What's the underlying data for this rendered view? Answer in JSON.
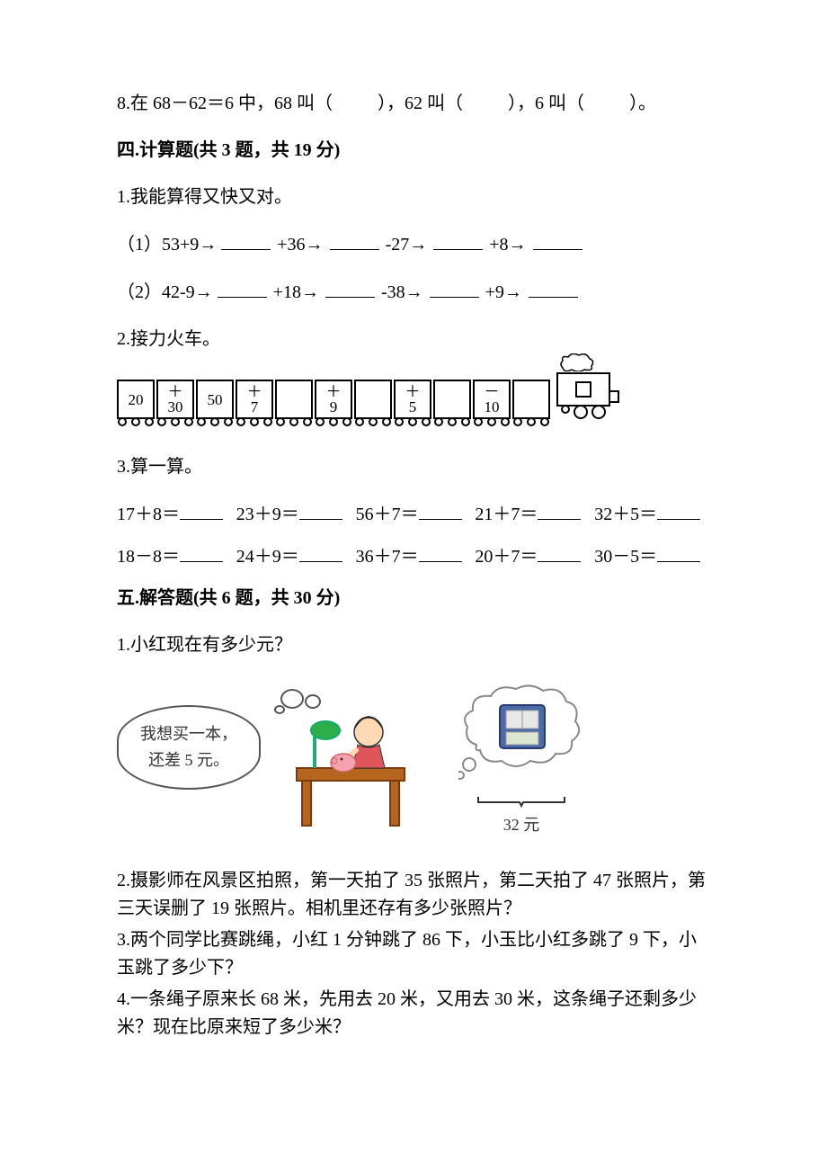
{
  "q8": {
    "text_a": "8.在 68－62＝6 中，68 叫（",
    "text_b": "），62 叫（",
    "text_c": "），6 叫（",
    "text_d": "）。"
  },
  "section4": {
    "heading": "四.计算题(共 3 题，共 19 分)",
    "q1": {
      "title": "1.我能算得又快又对。",
      "line1_start": "（1）53+9→",
      "line1_op1": "+36→",
      "line1_op2": "-27→",
      "line1_op3": "+8→",
      "line2_start": "（2）42-9→",
      "line2_op1": "+18→",
      "line2_op2": "-38→",
      "line2_op3": "+9→"
    },
    "q2": {
      "title": "2.接力火车。",
      "cars": [
        {
          "label": "20",
          "type": "value"
        },
        {
          "label": "＋\n30",
          "type": "op"
        },
        {
          "label": "50",
          "type": "value"
        },
        {
          "label": "＋\n7",
          "type": "op"
        },
        {
          "label": "",
          "type": "value"
        },
        {
          "label": "＋\n9",
          "type": "op"
        },
        {
          "label": "",
          "type": "value"
        },
        {
          "label": "＋\n5",
          "type": "op"
        },
        {
          "label": "",
          "type": "value"
        },
        {
          "label": "－\n10",
          "type": "op"
        },
        {
          "label": "",
          "type": "value"
        }
      ]
    },
    "q3": {
      "title": "3.算一算。",
      "row1": [
        {
          "expr": "17＋8＝"
        },
        {
          "expr": "23＋9＝"
        },
        {
          "expr": "56＋7＝"
        },
        {
          "expr": "21＋7＝"
        },
        {
          "expr": "32＋5＝"
        }
      ],
      "row2": [
        {
          "expr": "18－8＝"
        },
        {
          "expr": "24＋9＝"
        },
        {
          "expr": "36＋7＝"
        },
        {
          "expr": "20＋7＝"
        },
        {
          "expr": "30－5＝"
        }
      ]
    }
  },
  "section5": {
    "heading": "五.解答题(共 6 题，共 30 分)",
    "q1": {
      "title": "1.小红现在有多少元？",
      "bubble_line1": "我想买一本，",
      "bubble_line2": "还差 5 元。",
      "price": "32 元"
    },
    "q2": "2.摄影师在风景区拍照，第一天拍了 35 张照片，第二天拍了 47 张照片，第三天误删了 19 张照片。相机里还存有多少张照片？",
    "q3": "3.两个同学比赛跳绳，小红 1 分钟跳了 86 下，小玉比小红多跳了 9 下，小玉跳了多少下？",
    "q4": "4.一条绳子原来长 68 米，先用去 20 米，又用去 30 米，这条绳子还剩多少米？现在比原来短了多少米？"
  },
  "colors": {
    "text": "#000000",
    "bg": "#ffffff",
    "illus_line": "#555555"
  }
}
